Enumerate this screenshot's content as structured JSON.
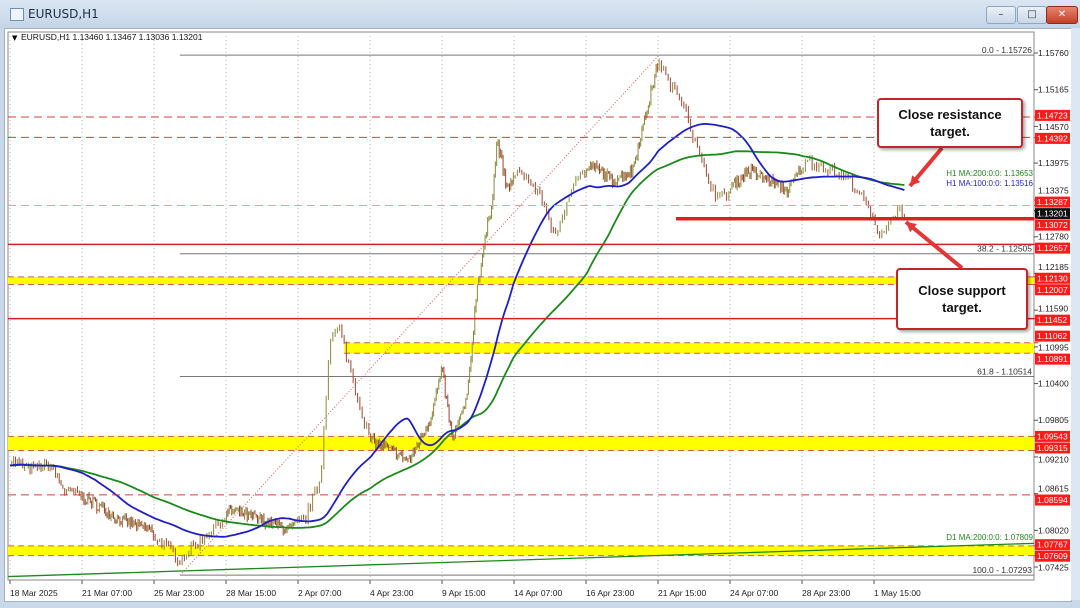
{
  "window": {
    "title": "EURUSD,H1",
    "minimize": "–",
    "maximize": "□",
    "close": "✕"
  },
  "chart_data": {
    "type": "candlestick",
    "symbol_header": "EURUSD,H1  1.13460 1.13467 1.13036 1.13201",
    "current_price": "1.13201",
    "ylim": [
      1.071,
      1.161
    ],
    "y_ticks": [
      "1.15760",
      "1.15165",
      "1.14570",
      "1.13975",
      "1.13375",
      "1.12780",
      "1.12185",
      "1.11590",
      "1.10995",
      "1.10400",
      "1.09805",
      "1.09210",
      "1.08615",
      "1.08020",
      "1.07425"
    ],
    "x_ticks": [
      {
        "date": "2025-03-18 00:00",
        "label": "18 Mar 2025"
      },
      {
        "date": "2025-03-21 07:00",
        "label": "21 Mar 07:00"
      },
      {
        "date": "2025-03-25 23:00",
        "label": "25 Mar 23:00"
      },
      {
        "date": "2025-03-28 15:00",
        "label": "28 Mar 15:00"
      },
      {
        "date": "2025-04-02 07:00",
        "label": "2 Apr 07:00"
      },
      {
        "date": "2025-04-04 23:00",
        "label": "4 Apr 23:00"
      },
      {
        "date": "2025-04-09 15:00",
        "label": "9 Apr 15:00"
      },
      {
        "date": "2025-04-14 07:00",
        "label": "14 Apr 07:00"
      },
      {
        "date": "2025-04-16 23:00",
        "label": "16 Apr 23:00"
      },
      {
        "date": "2025-04-21 15:00",
        "label": "21 Apr 15:00"
      },
      {
        "date": "2025-04-24 07:00",
        "label": "24 Apr 07:00"
      },
      {
        "date": "2025-04-28 23:00",
        "label": "28 Apr 23:00"
      },
      {
        "date": "2025-05-01 15:00",
        "label": "1 May 15:00"
      }
    ],
    "price_path": [
      [
        "2025-03-18 00:00",
        1.0916
      ],
      [
        "2025-03-18 22:00",
        1.09
      ],
      [
        "2025-03-19 20:00",
        1.0908
      ],
      [
        "2025-03-20 12:00",
        1.0867
      ],
      [
        "2025-03-21 19:00",
        1.0851
      ],
      [
        "2025-03-23 18:00",
        1.0819
      ],
      [
        "2025-03-25 17:00",
        1.0803
      ],
      [
        "2025-03-26 22:00",
        1.0754
      ],
      [
        "2025-03-27 16:00",
        1.0786
      ],
      [
        "2025-03-28 21:00",
        1.0835
      ],
      [
        "2025-03-30 20:00",
        1.0819
      ],
      [
        "2025-04-01 19:00",
        1.0803
      ],
      [
        "2025-04-02 13:00",
        1.0819
      ],
      [
        "2025-04-03 03:00",
        1.0884
      ],
      [
        "2025-04-03 11:00",
        1.1111
      ],
      [
        "2025-04-03 20:00",
        1.1127
      ],
      [
        "2025-04-04 10:00",
        1.103
      ],
      [
        "2025-04-04 23:00",
        1.0948
      ],
      [
        "2025-04-06 06:00",
        1.0932
      ],
      [
        "2025-04-07 13:00",
        1.0916
      ],
      [
        "2025-04-08 20:00",
        1.0981
      ],
      [
        "2025-04-09 15:00",
        1.1062
      ],
      [
        "2025-04-10 07:00",
        1.0948
      ],
      [
        "2025-04-11 06:00",
        1.1013
      ],
      [
        "2025-04-11 21:00",
        1.1192
      ],
      [
        "2025-04-12 21:00",
        1.1338
      ],
      [
        "2025-04-13 05:00",
        1.1435
      ],
      [
        "2025-04-13 20:00",
        1.1354
      ],
      [
        "2025-04-14 14:00",
        1.1386
      ],
      [
        "2025-04-15 08:00",
        1.1338
      ],
      [
        "2025-04-15 21:00",
        1.1273
      ],
      [
        "2025-04-16 11:00",
        1.137
      ],
      [
        "2025-04-17 08:00",
        1.1394
      ],
      [
        "2025-04-18 15:00",
        1.137
      ],
      [
        "2025-04-19 23:00",
        1.1386
      ],
      [
        "2025-04-20 22:00",
        1.1484
      ],
      [
        "2025-04-21 16:00",
        1.1565
      ],
      [
        "2025-04-22 01:00",
        1.1524
      ],
      [
        "2025-04-22 14:00",
        1.15
      ],
      [
        "2025-04-22 23:00",
        1.1435
      ],
      [
        "2025-04-23 08:00",
        1.1386
      ],
      [
        "2025-04-23 21:00",
        1.1338
      ],
      [
        "2025-04-24 12:00",
        1.1362
      ],
      [
        "2025-04-25 11:00",
        1.1386
      ],
      [
        "2025-04-26 18:00",
        1.137
      ],
      [
        "2025-04-28 01:00",
        1.1354
      ],
      [
        "2025-04-29 06:00",
        1.1402
      ],
      [
        "2025-04-30 00:00",
        1.1386
      ],
      [
        "2025-04-30 18:00",
        1.137
      ],
      [
        "2025-05-01 11:00",
        1.1321
      ],
      [
        "2025-05-01 18:00",
        1.1281
      ],
      [
        "2025-05-02 03:00",
        1.1297
      ],
      [
        "2025-05-02 11:00",
        1.1321
      ],
      [
        "2025-05-02 19:00",
        1.132
      ]
    ],
    "moving_averages": [
      {
        "label": "H1 MA:200:0:0: 1.13653",
        "period": 200,
        "color": "#1a8a1a"
      },
      {
        "label": "H1 MA:100:0:0: 1.13516",
        "period": 100,
        "color": "#1f1fc8"
      },
      {
        "label": "D1 MA:200:0:0: 1.07809",
        "color": "#1a8a1a",
        "start_value": 1.0727,
        "end_value": 1.07809
      }
    ],
    "price_lines": [
      {
        "price": 1.14723,
        "label": "1.14723",
        "style": "dashed"
      },
      {
        "price": 1.14392,
        "label": "1.14392",
        "style": "dashed"
      },
      {
        "price": 1.13287,
        "label": "1.13287",
        "style": "dashed-light"
      },
      {
        "price": 1.13072,
        "label": "1.13072",
        "style": "thick",
        "from": "2025-04-22 07:00"
      },
      {
        "price": 1.12657,
        "label": "1.12657",
        "style": "solid"
      },
      {
        "price": 1.11452,
        "label": "1.11452",
        "style": "solid"
      },
      {
        "price": 1.08594,
        "label": "1.08594",
        "style": "dashed"
      }
    ],
    "zones": [
      {
        "high": 1.1213,
        "low": 1.12007,
        "labels": [
          "1.12130",
          "1.12007"
        ]
      },
      {
        "high": 1.11062,
        "low": 1.10891,
        "labels": [
          "1.11062",
          "1.10891"
        ],
        "from": "2025-04-04 00:00"
      },
      {
        "high": 1.09543,
        "low": 1.09315,
        "labels": [
          "1.09543",
          "1.09315"
        ]
      },
      {
        "high": 1.07767,
        "low": 1.07609,
        "labels": [
          "1.07767",
          "1.07609"
        ]
      }
    ],
    "fibonacci": {
      "from": "2025-03-26 22:00",
      "to": "2025-04-21 16:00",
      "levels": [
        {
          "label": "0.0 - 1.15726",
          "price": 1.15726
        },
        {
          "label": "38.2 - 1.12505",
          "price": 1.12505
        },
        {
          "label": "61.8 - 1.10514",
          "price": 1.10514
        },
        {
          "label": "100.0 - 1.07293",
          "price": 1.07293
        }
      ]
    },
    "annotations": [
      {
        "text": "Close resistance target.",
        "target_price": 1.1352
      },
      {
        "text": "Close support target.",
        "target_price": 1.1307
      }
    ],
    "colors": {
      "up": "#8a8a3a",
      "down": "#a0442f",
      "label_bg": "#ff1a1a",
      "zone": "#ffff00",
      "line": "#d42020"
    }
  }
}
